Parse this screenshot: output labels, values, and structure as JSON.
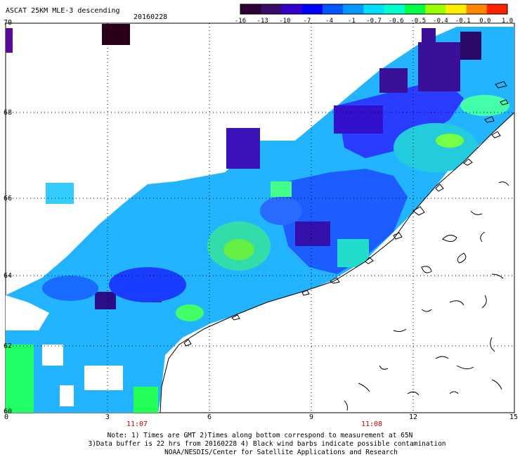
{
  "header": {
    "title": "ASCAT 25KM MLE-3 descending",
    "date": "20160228"
  },
  "colorbar": {
    "ticks": [
      "-16",
      "-13",
      "-10",
      "-7",
      "-4",
      "-1",
      "-0.7",
      "-0.6",
      "-0.5",
      "-0.4",
      "-0.1",
      "0.0",
      "1.0"
    ],
    "colors": [
      "#2b0033",
      "#3a0a66",
      "#3300cc",
      "#0000ff",
      "#0055ff",
      "#0099ff",
      "#00ddff",
      "#00ffcc",
      "#00ff44",
      "#99ff00",
      "#ffee00",
      "#ff8800",
      "#ff2200"
    ]
  },
  "axes": {
    "y_labels": [
      "70",
      "68",
      "66",
      "64",
      "62",
      "60"
    ],
    "x_labels": [
      "0",
      "3",
      "6",
      "9",
      "12",
      "15"
    ],
    "times": [
      "11:07",
      "11:08"
    ]
  },
  "notes": {
    "line1": "Note: 1) Times are GMT 2)Times along bottom correspond to measurement at 65N",
    "line2": "3)Data buffer is 22 hrs from 20160228 4) Black wind barbs indicate possible contamination",
    "line3": "NOAA/NESDIS/Center for Satellite Applications and Research"
  }
}
